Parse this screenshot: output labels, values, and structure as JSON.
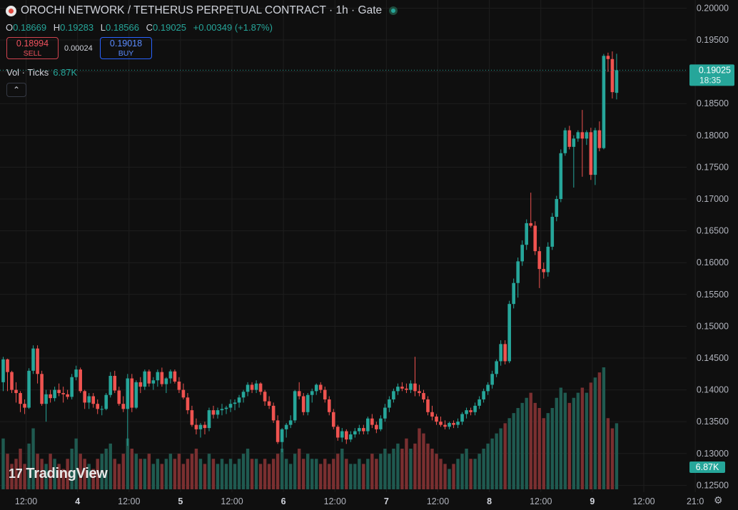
{
  "header": {
    "symbol": "OROCHI NETWORK / TETHERUS PERPETUAL CONTRACT · 1h · Gate",
    "o_label": "O",
    "o_value": "0.18669",
    "h_label": "H",
    "h_value": "0.19283",
    "l_label": "L",
    "l_value": "0.18566",
    "c_label": "C",
    "c_value": "0.19025",
    "change": "+0.00349 (+1.87%)"
  },
  "trade": {
    "sell_price": "0.18994",
    "sell_label": "SELL",
    "spread": "0.00024",
    "buy_price": "0.19018",
    "buy_label": "BUY"
  },
  "volume_legend": {
    "label": "Vol · Ticks",
    "value": "6.87K"
  },
  "collapse_icon": "chevron-up-icon",
  "branding": {
    "mark": "17",
    "name": "TradingView"
  },
  "settings_icon": "gear-icon",
  "colors": {
    "up": "#26a69a",
    "down": "#ef5350",
    "background": "#0f0f0f",
    "grid": "#1e1e1e"
  },
  "chart_data": {
    "type": "candlestick",
    "price_axis": {
      "ticks": [
        "0.20000",
        "0.19500",
        "0.19000",
        "0.18500",
        "0.18000",
        "0.17500",
        "0.17000",
        "0.16500",
        "0.16000",
        "0.15500",
        "0.15000",
        "0.14500",
        "0.14000",
        "0.13500",
        "0.13000",
        "0.12500"
      ],
      "range": [
        0.12448,
        0.20072
      ]
    },
    "time_axis": {
      "labels": [
        "12:00",
        "4",
        "12:00",
        "5",
        "12:00",
        "6",
        "12:00",
        "7",
        "12:00",
        "8",
        "12:00",
        "9",
        "12:00",
        "21:0"
      ],
      "bar_indices": [
        5,
        17,
        29,
        41,
        53,
        65,
        77,
        89,
        101,
        113,
        125,
        137,
        149,
        161
      ]
    },
    "last_price": {
      "value": "0.19025",
      "countdown": "18:35"
    },
    "last_volume": "6.87K",
    "max_volume_display": 24,
    "candles": [
      [
        0.1412,
        0.1452,
        0.1398,
        0.1448,
        10
      ],
      [
        0.1448,
        0.1449,
        0.1398,
        0.1428,
        7
      ],
      [
        0.1428,
        0.143,
        0.1395,
        0.14,
        5
      ],
      [
        0.14,
        0.1412,
        0.138,
        0.1395,
        6
      ],
      [
        0.1395,
        0.1398,
        0.1365,
        0.1378,
        8
      ],
      [
        0.1378,
        0.1385,
        0.1362,
        0.1372,
        5
      ],
      [
        0.1372,
        0.1434,
        0.137,
        0.143,
        9
      ],
      [
        0.143,
        0.147,
        0.1425,
        0.1465,
        12
      ],
      [
        0.1465,
        0.147,
        0.141,
        0.1425,
        7
      ],
      [
        0.1425,
        0.143,
        0.1375,
        0.1378,
        6
      ],
      [
        0.1378,
        0.14,
        0.135,
        0.1393,
        5
      ],
      [
        0.1393,
        0.14,
        0.138,
        0.1387,
        7
      ],
      [
        0.1387,
        0.1405,
        0.1382,
        0.14,
        6
      ],
      [
        0.14,
        0.141,
        0.139,
        0.1395,
        5
      ],
      [
        0.1395,
        0.1405,
        0.138,
        0.1393,
        4
      ],
      [
        0.1393,
        0.14,
        0.1385,
        0.1389,
        6
      ],
      [
        0.1389,
        0.1425,
        0.1385,
        0.142,
        8
      ],
      [
        0.142,
        0.1438,
        0.1415,
        0.1432,
        10
      ],
      [
        0.1432,
        0.1435,
        0.1395,
        0.1398,
        7
      ],
      [
        0.1398,
        0.14,
        0.137,
        0.138,
        6
      ],
      [
        0.138,
        0.1395,
        0.137,
        0.139,
        5
      ],
      [
        0.139,
        0.1395,
        0.1372,
        0.1378,
        4
      ],
      [
        0.1378,
        0.1385,
        0.1362,
        0.137,
        6
      ],
      [
        0.137,
        0.1375,
        0.136,
        0.137,
        7
      ],
      [
        0.137,
        0.1395,
        0.1368,
        0.1392,
        8
      ],
      [
        0.1392,
        0.1428,
        0.1388,
        0.1422,
        9
      ],
      [
        0.1422,
        0.143,
        0.1395,
        0.1399,
        6
      ],
      [
        0.1399,
        0.1405,
        0.1375,
        0.1378,
        5
      ],
      [
        0.1378,
        0.139,
        0.1365,
        0.137,
        7
      ],
      [
        0.137,
        0.1425,
        0.1312,
        0.1418,
        10
      ],
      [
        0.1418,
        0.1425,
        0.1365,
        0.1372,
        8
      ],
      [
        0.1372,
        0.1415,
        0.137,
        0.1412,
        7
      ],
      [
        0.1412,
        0.142,
        0.1395,
        0.1405,
        6
      ],
      [
        0.1405,
        0.1432,
        0.14,
        0.1429,
        6
      ],
      [
        0.1429,
        0.1432,
        0.1405,
        0.141,
        7
      ],
      [
        0.141,
        0.142,
        0.14,
        0.1415,
        5
      ],
      [
        0.1415,
        0.1432,
        0.1405,
        0.1428,
        6
      ],
      [
        0.1428,
        0.1435,
        0.1405,
        0.1409,
        5
      ],
      [
        0.1409,
        0.142,
        0.1395,
        0.1418,
        6
      ],
      [
        0.1418,
        0.1432,
        0.141,
        0.1429,
        7
      ],
      [
        0.1429,
        0.1432,
        0.141,
        0.1413,
        6
      ],
      [
        0.1413,
        0.142,
        0.1395,
        0.14,
        7
      ],
      [
        0.14,
        0.141,
        0.1385,
        0.1388,
        5
      ],
      [
        0.1388,
        0.1395,
        0.1362,
        0.1368,
        6
      ],
      [
        0.1368,
        0.1375,
        0.1342,
        0.1345,
        7
      ],
      [
        0.1345,
        0.1355,
        0.133,
        0.1338,
        8
      ],
      [
        0.1338,
        0.1348,
        0.1325,
        0.1345,
        6
      ],
      [
        0.1345,
        0.135,
        0.133,
        0.134,
        5
      ],
      [
        0.134,
        0.1372,
        0.1335,
        0.1368,
        7
      ],
      [
        0.1368,
        0.1375,
        0.1355,
        0.1361,
        6
      ],
      [
        0.1361,
        0.1372,
        0.1355,
        0.1368,
        5
      ],
      [
        0.1368,
        0.1378,
        0.136,
        0.137,
        6
      ],
      [
        0.137,
        0.1375,
        0.1362,
        0.1372,
        5
      ],
      [
        0.1372,
        0.1385,
        0.1365,
        0.1378,
        6
      ],
      [
        0.1378,
        0.1385,
        0.1368,
        0.138,
        5
      ],
      [
        0.138,
        0.1392,
        0.1372,
        0.1388,
        6
      ],
      [
        0.1388,
        0.14,
        0.138,
        0.1397,
        7
      ],
      [
        0.1397,
        0.1412,
        0.139,
        0.1408,
        8
      ],
      [
        0.1408,
        0.1412,
        0.1395,
        0.14,
        6
      ],
      [
        0.14,
        0.1415,
        0.1395,
        0.141,
        6
      ],
      [
        0.141,
        0.1412,
        0.1392,
        0.1397,
        5
      ],
      [
        0.1397,
        0.14,
        0.1375,
        0.1382,
        6
      ],
      [
        0.1382,
        0.139,
        0.137,
        0.1375,
        5
      ],
      [
        0.1375,
        0.138,
        0.1348,
        0.1352,
        6
      ],
      [
        0.1352,
        0.136,
        0.1315,
        0.1318,
        7
      ],
      [
        0.1318,
        0.134,
        0.1302,
        0.1338,
        8
      ],
      [
        0.1338,
        0.1348,
        0.1325,
        0.1345,
        6
      ],
      [
        0.1345,
        0.136,
        0.134,
        0.1352,
        5
      ],
      [
        0.1352,
        0.14,
        0.1348,
        0.1398,
        7
      ],
      [
        0.1398,
        0.1412,
        0.1385,
        0.139,
        8
      ],
      [
        0.139,
        0.1395,
        0.136,
        0.1365,
        6
      ],
      [
        0.1365,
        0.1395,
        0.136,
        0.1392,
        7
      ],
      [
        0.1392,
        0.1402,
        0.138,
        0.1398,
        6
      ],
      [
        0.1398,
        0.141,
        0.1392,
        0.1408,
        6
      ],
      [
        0.1408,
        0.1412,
        0.1395,
        0.14,
        5
      ],
      [
        0.14,
        0.1405,
        0.138,
        0.1385,
        6
      ],
      [
        0.1385,
        0.139,
        0.136,
        0.1365,
        5
      ],
      [
        0.1365,
        0.137,
        0.1338,
        0.1342,
        6
      ],
      [
        0.1342,
        0.1345,
        0.132,
        0.1325,
        7
      ],
      [
        0.1325,
        0.134,
        0.1318,
        0.1335,
        8
      ],
      [
        0.1335,
        0.1338,
        0.1315,
        0.1322,
        6
      ],
      [
        0.1322,
        0.1335,
        0.1318,
        0.133,
        5
      ],
      [
        0.133,
        0.134,
        0.1325,
        0.1335,
        5
      ],
      [
        0.1335,
        0.1345,
        0.133,
        0.134,
        6
      ],
      [
        0.134,
        0.1345,
        0.133,
        0.1335,
        5
      ],
      [
        0.1335,
        0.1358,
        0.133,
        0.1355,
        6
      ],
      [
        0.1355,
        0.1362,
        0.134,
        0.1345,
        7
      ],
      [
        0.1345,
        0.135,
        0.1332,
        0.1338,
        6
      ],
      [
        0.1338,
        0.136,
        0.1335,
        0.1355,
        7
      ],
      [
        0.1355,
        0.1378,
        0.135,
        0.1372,
        8
      ],
      [
        0.1372,
        0.139,
        0.1365,
        0.1385,
        7
      ],
      [
        0.1385,
        0.1402,
        0.138,
        0.1398,
        8
      ],
      [
        0.1398,
        0.141,
        0.1392,
        0.1405,
        9
      ],
      [
        0.1405,
        0.1412,
        0.1398,
        0.1402,
        8
      ],
      [
        0.1402,
        0.141,
        0.1395,
        0.14,
        10
      ],
      [
        0.14,
        0.1415,
        0.1395,
        0.141,
        8
      ],
      [
        0.141,
        0.1452,
        0.139,
        0.1398,
        9
      ],
      [
        0.1398,
        0.1408,
        0.139,
        0.1395,
        12
      ],
      [
        0.1395,
        0.14,
        0.138,
        0.1385,
        11
      ],
      [
        0.1385,
        0.139,
        0.136,
        0.1365,
        9
      ],
      [
        0.1365,
        0.1375,
        0.1352,
        0.1358,
        8
      ],
      [
        0.1358,
        0.1362,
        0.1345,
        0.135,
        7
      ],
      [
        0.135,
        0.1358,
        0.1342,
        0.1345,
        6
      ],
      [
        0.1345,
        0.1352,
        0.1338,
        0.1342,
        5
      ],
      [
        0.1342,
        0.135,
        0.1338,
        0.1348,
        4
      ],
      [
        0.1348,
        0.1352,
        0.134,
        0.1345,
        5
      ],
      [
        0.1345,
        0.1355,
        0.134,
        0.135,
        6
      ],
      [
        0.135,
        0.1365,
        0.1345,
        0.1362,
        7
      ],
      [
        0.1362,
        0.1372,
        0.1355,
        0.1368,
        8
      ],
      [
        0.1368,
        0.1372,
        0.136,
        0.1365,
        6
      ],
      [
        0.1365,
        0.138,
        0.136,
        0.1375,
        6
      ],
      [
        0.1375,
        0.139,
        0.137,
        0.1385,
        7
      ],
      [
        0.1385,
        0.1402,
        0.138,
        0.1398,
        8
      ],
      [
        0.1398,
        0.1412,
        0.1392,
        0.1408,
        9
      ],
      [
        0.1408,
        0.143,
        0.1402,
        0.1425,
        10
      ],
      [
        0.1425,
        0.1448,
        0.142,
        0.1445,
        11
      ],
      [
        0.1445,
        0.1478,
        0.1438,
        0.1472,
        12
      ],
      [
        0.1472,
        0.1478,
        0.144,
        0.1445,
        13
      ],
      [
        0.1445,
        0.154,
        0.1442,
        0.1535,
        14
      ],
      [
        0.1535,
        0.1575,
        0.1528,
        0.1568,
        15
      ],
      [
        0.1568,
        0.1608,
        0.1545,
        0.1602,
        16
      ],
      [
        0.1602,
        0.1635,
        0.1595,
        0.1628,
        17
      ],
      [
        0.1628,
        0.1668,
        0.162,
        0.1662,
        18
      ],
      [
        0.1662,
        0.171,
        0.1655,
        0.1658,
        19
      ],
      [
        0.1658,
        0.1665,
        0.1612,
        0.1618,
        17
      ],
      [
        0.1618,
        0.1625,
        0.156,
        0.159,
        16
      ],
      [
        0.159,
        0.16,
        0.1575,
        0.1585,
        14
      ],
      [
        0.1585,
        0.1632,
        0.1578,
        0.1625,
        15
      ],
      [
        0.1625,
        0.1678,
        0.162,
        0.1672,
        16
      ],
      [
        0.1672,
        0.1705,
        0.1665,
        0.17,
        18
      ],
      [
        0.17,
        0.1778,
        0.1695,
        0.1772,
        20
      ],
      [
        0.1772,
        0.1812,
        0.1768,
        0.1808,
        19
      ],
      [
        0.1808,
        0.1815,
        0.1778,
        0.1782,
        17
      ],
      [
        0.1782,
        0.18,
        0.1718,
        0.1795,
        18
      ],
      [
        0.1795,
        0.1808,
        0.179,
        0.1805,
        19
      ],
      [
        0.1805,
        0.184,
        0.1735,
        0.1795,
        20
      ],
      [
        0.1795,
        0.1808,
        0.1785,
        0.1805,
        19
      ],
      [
        0.1805,
        0.1812,
        0.173,
        0.1738,
        21
      ],
      [
        0.1738,
        0.1812,
        0.1722,
        0.1808,
        22
      ],
      [
        0.1808,
        0.1822,
        0.1775,
        0.178,
        23
      ],
      [
        0.178,
        0.1928,
        0.1778,
        0.1925,
        24
      ],
      [
        0.1925,
        0.193,
        0.19,
        0.192,
        14
      ],
      [
        0.192,
        0.1932,
        0.1858,
        0.1868,
        12
      ],
      [
        0.18669,
        0.19283,
        0.18566,
        0.19025,
        13
      ]
    ]
  }
}
